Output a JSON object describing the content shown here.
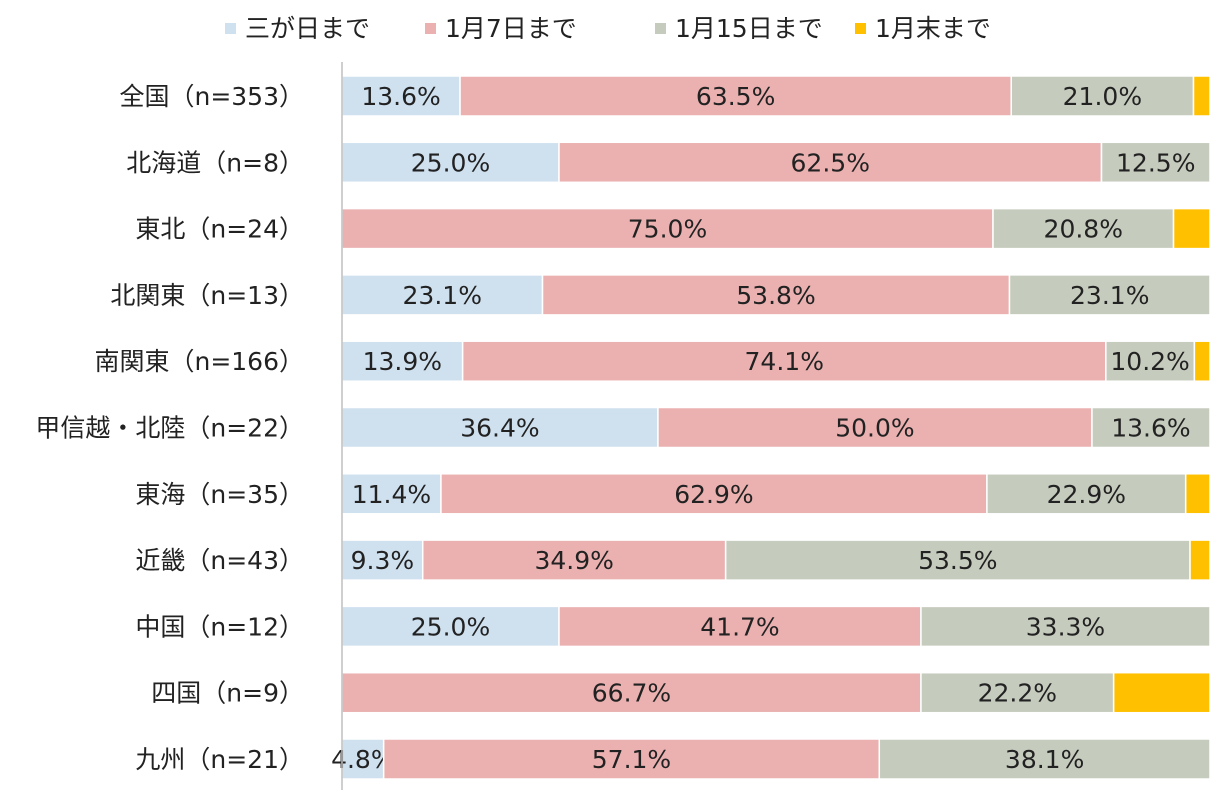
{
  "chart_data": {
    "type": "bar",
    "orientation": "horizontal",
    "stacked": "percent",
    "title": "",
    "xlabel": "",
    "ylabel": "",
    "xlim": [
      0,
      100
    ],
    "grid": false,
    "legend_position": "top",
    "categories": [
      "全国（n=353）",
      "北海道（n=8）",
      "東北（n=24）",
      "北関東（n=13）",
      "南関東（n=166）",
      "甲信越・北陸（n=22）",
      "東海（n=35）",
      "近畿（n=43）",
      "中国（n=12）",
      "四国（n=9）",
      "九州（n=21）"
    ],
    "series": [
      {
        "name": "三が日まで",
        "color": "#cfe0ef",
        "values": [
          13.6,
          25.0,
          0,
          23.1,
          13.9,
          36.4,
          11.4,
          9.3,
          25.0,
          0,
          4.8
        ],
        "labels": [
          "13.6%",
          "25.0%",
          "",
          "23.1%",
          "13.9%",
          "36.4%",
          "11.4%",
          "9.3%",
          "25.0%",
          "",
          "4.8%"
        ]
      },
      {
        "name": "1月7日まで",
        "color": "#eab1b0",
        "values": [
          63.5,
          62.5,
          75.0,
          53.8,
          74.1,
          50.0,
          62.9,
          34.9,
          41.7,
          66.7,
          57.1
        ],
        "labels": [
          "63.5%",
          "62.5%",
          "75.0%",
          "53.8%",
          "74.1%",
          "50.0%",
          "62.9%",
          "34.9%",
          "41.7%",
          "66.7%",
          "57.1%"
        ]
      },
      {
        "name": "1月15日まで",
        "color": "#c5cbbd",
        "values": [
          21.0,
          12.5,
          20.8,
          23.1,
          10.2,
          13.6,
          22.9,
          53.5,
          33.3,
          22.2,
          38.1
        ],
        "labels": [
          "21.0%",
          "12.5%",
          "20.8%",
          "23.1%",
          "10.2%",
          "13.6%",
          "22.9%",
          "53.5%",
          "33.3%",
          "22.2%",
          "38.1%"
        ]
      },
      {
        "name": "1月末まで",
        "color": "#ffc000",
        "values": [
          1.9,
          0,
          4.2,
          0,
          1.8,
          0,
          2.8,
          2.3,
          0,
          11.1,
          0
        ],
        "labels": [
          "",
          "",
          "",
          "",
          "",
          "",
          "",
          "",
          "",
          "",
          ""
        ]
      }
    ]
  }
}
